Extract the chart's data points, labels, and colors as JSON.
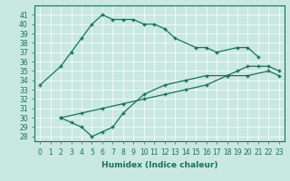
{
  "xlabel": "Humidex (Indice chaleur)",
  "bg_color": "#c8e8e0",
  "line_color": "#1a7060",
  "grid_color": "#ffffff",
  "xlim": [
    -0.5,
    23.5
  ],
  "ylim": [
    27.5,
    42.0
  ],
  "xticks": [
    0,
    1,
    2,
    3,
    4,
    5,
    6,
    7,
    8,
    9,
    10,
    11,
    12,
    13,
    14,
    15,
    16,
    17,
    18,
    19,
    20,
    21,
    22,
    23
  ],
  "yticks": [
    28,
    29,
    30,
    31,
    32,
    33,
    34,
    35,
    36,
    37,
    38,
    39,
    40,
    41
  ],
  "line1_x": [
    0,
    2,
    3,
    4,
    5,
    6,
    7,
    8,
    9,
    10,
    11,
    12,
    13,
    15,
    16,
    17,
    19,
    20,
    21
  ],
  "line1_y": [
    33.5,
    35.5,
    37.0,
    38.5,
    40.0,
    41.0,
    40.5,
    40.5,
    40.5,
    40.0,
    40.0,
    39.5,
    38.5,
    37.5,
    37.5,
    37.0,
    37.5,
    37.5,
    36.5
  ],
  "line2_x": [
    2,
    4,
    6,
    8,
    10,
    12,
    14,
    16,
    18,
    19,
    20,
    21,
    22,
    23
  ],
  "line2_y": [
    30.0,
    30.5,
    31.0,
    31.5,
    32.0,
    32.5,
    33.0,
    33.5,
    34.5,
    35.0,
    35.5,
    35.5,
    35.5,
    35.0
  ],
  "line3_x": [
    2,
    3,
    4,
    5,
    6,
    7,
    8,
    10,
    12,
    14,
    16,
    18,
    20,
    22,
    23
  ],
  "line3_y": [
    30.0,
    29.5,
    29.0,
    28.0,
    28.5,
    29.0,
    30.5,
    32.5,
    33.5,
    34.0,
    34.5,
    34.5,
    34.5,
    35.0,
    34.5
  ],
  "tick_fontsize": 5.5,
  "xlabel_fontsize": 6.5
}
